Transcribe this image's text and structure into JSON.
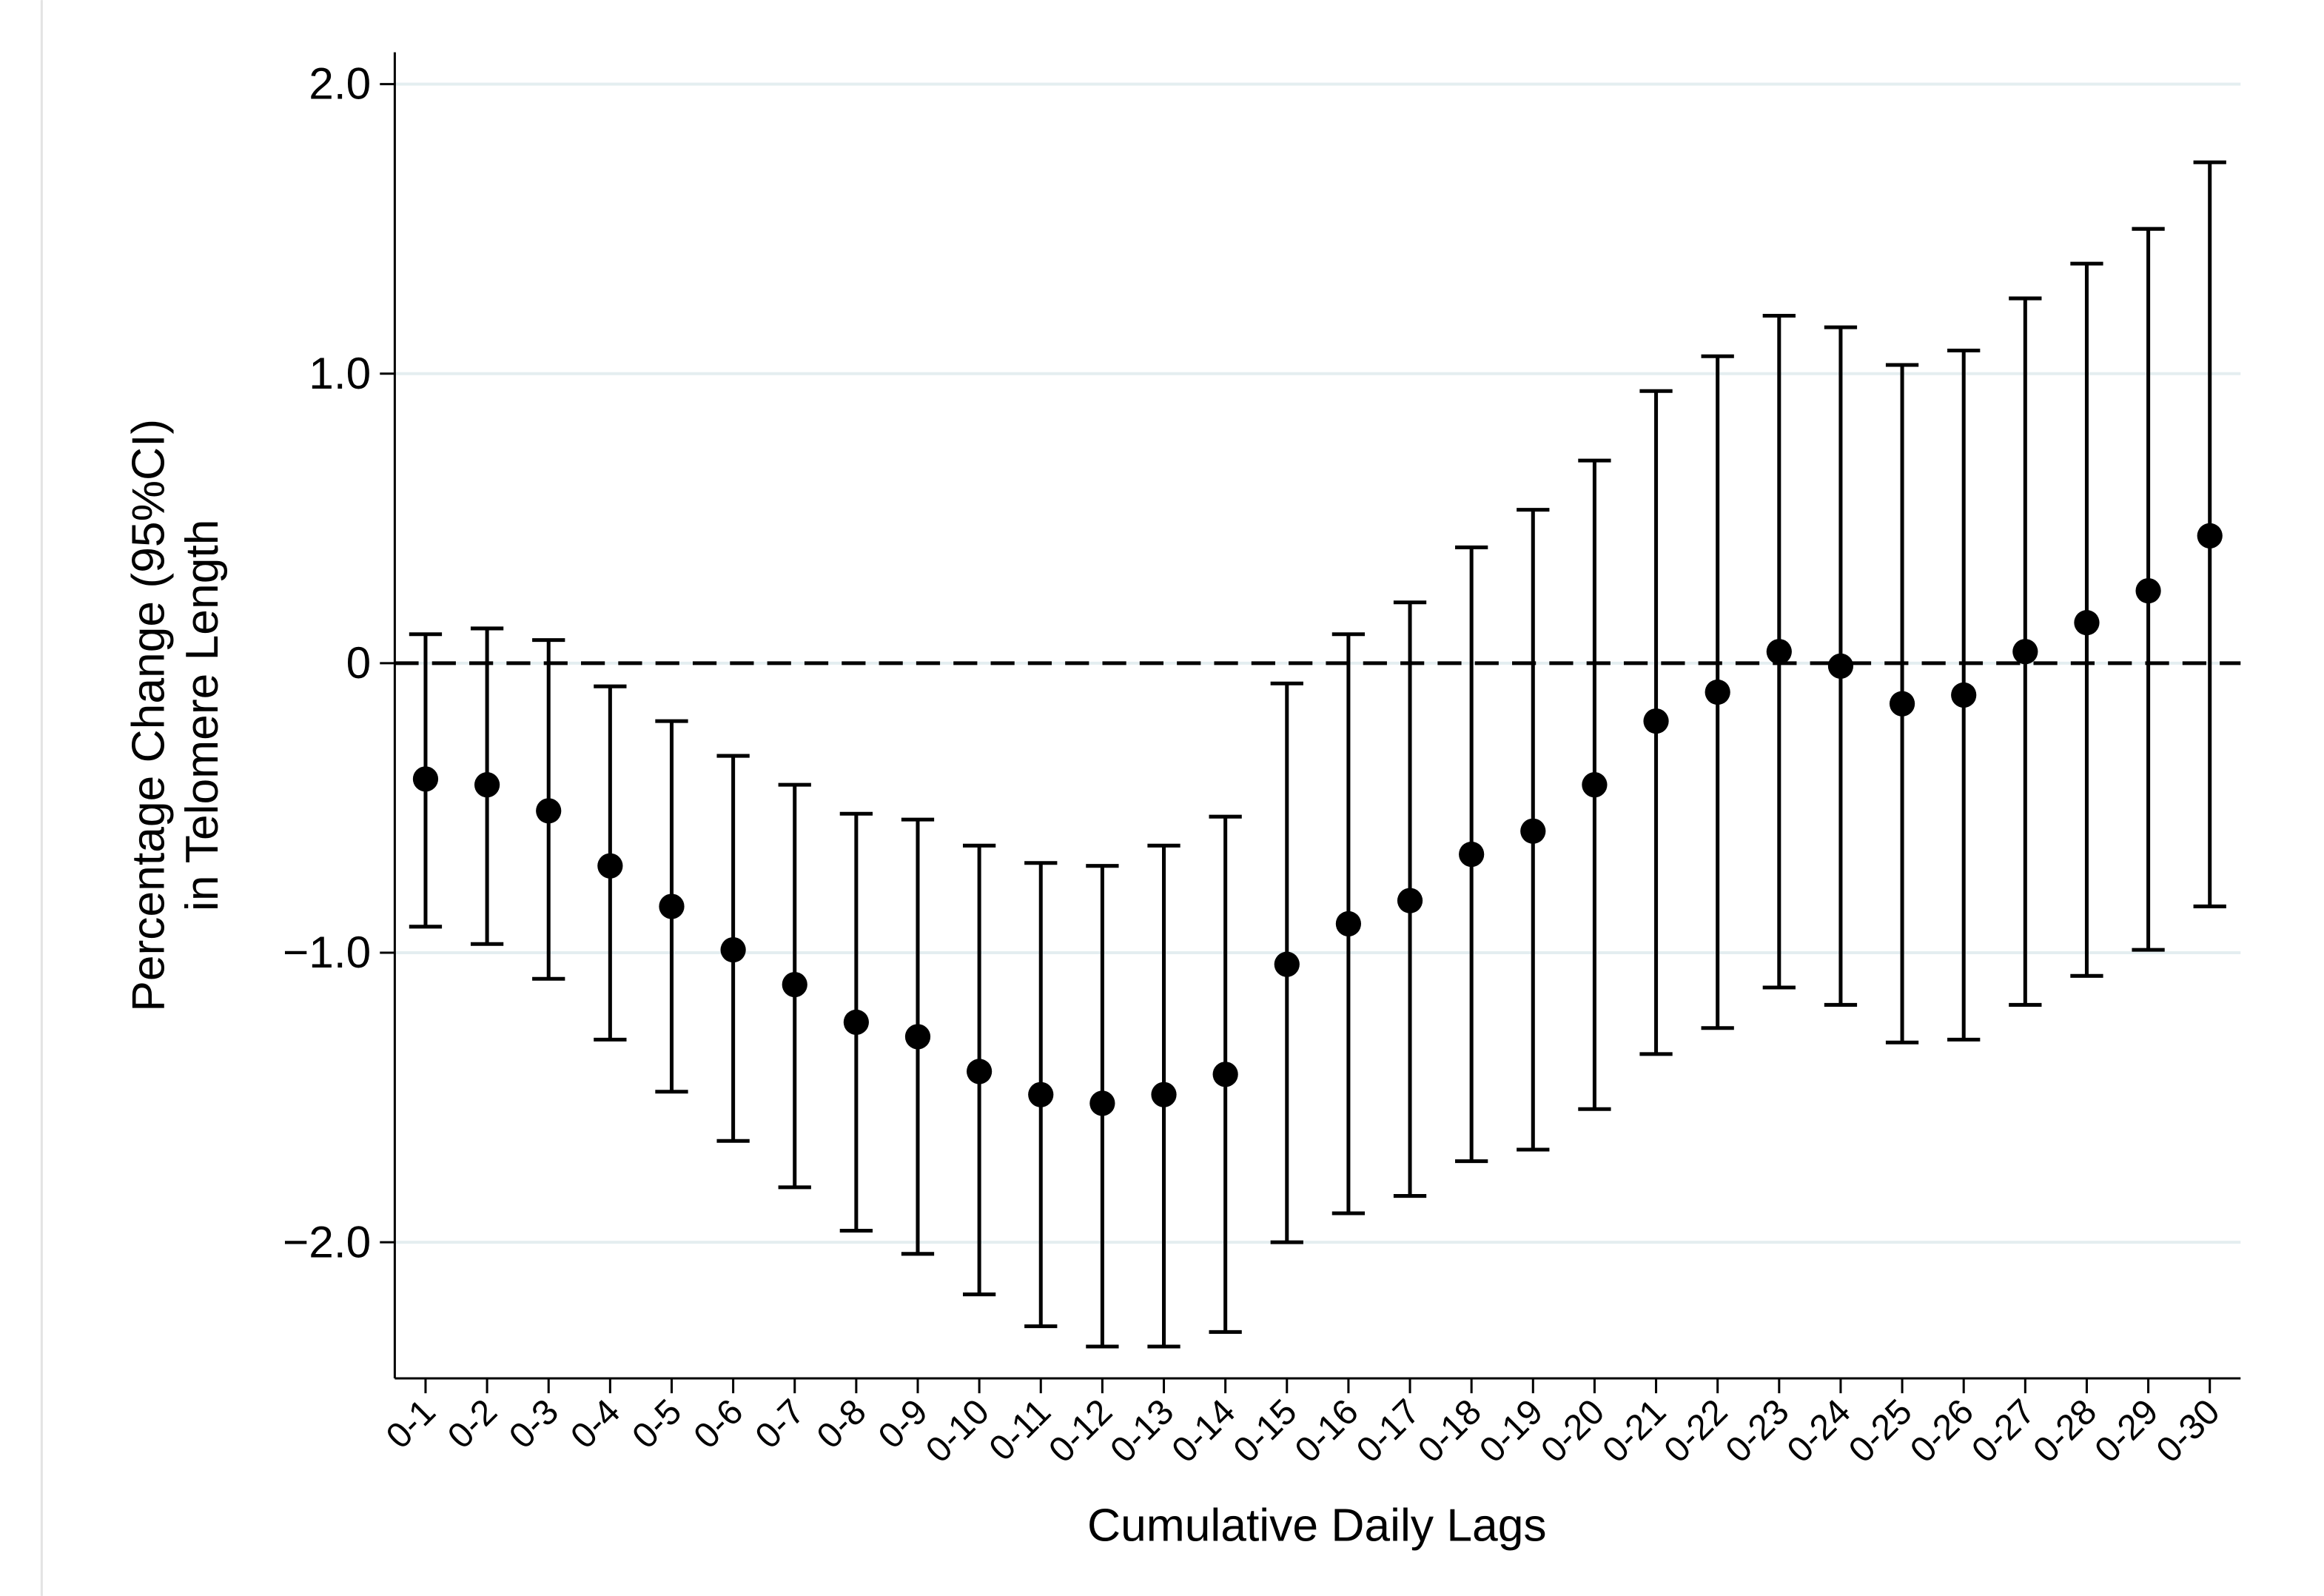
{
  "chart_data": {
    "type": "errorbar",
    "xlabel": "Cumulative Daily Lags",
    "ylabel": [
      "Percentage Change (95%CI)",
      "in Telomere Length"
    ],
    "categories": [
      "0-1",
      "0-2",
      "0-3",
      "0-4",
      "0-5",
      "0-6",
      "0-7",
      "0-8",
      "0-9",
      "0-10",
      "0-11",
      "0-12",
      "0-13",
      "0-14",
      "0-15",
      "0-16",
      "0-17",
      "0-18",
      "0-19",
      "0-20",
      "0-21",
      "0-22",
      "0-23",
      "0-24",
      "0-25",
      "0-26",
      "0-27",
      "0-28",
      "0-29",
      "0-30"
    ],
    "values": [
      -0.4,
      -0.42,
      -0.51,
      -0.7,
      -0.84,
      -0.99,
      -1.11,
      -1.24,
      -1.29,
      -1.41,
      -1.49,
      -1.52,
      -1.49,
      -1.42,
      -1.04,
      -0.9,
      -0.82,
      -0.66,
      -0.58,
      -0.42,
      -0.2,
      -0.1,
      0.04,
      -0.01,
      -0.14,
      -0.11,
      0.04,
      0.14,
      0.25,
      0.44
    ],
    "lower": [
      -0.91,
      -0.97,
      -1.09,
      -1.3,
      -1.48,
      -1.65,
      -1.81,
      -1.96,
      -2.04,
      -2.18,
      -2.29,
      -2.36,
      -2.36,
      -2.31,
      -2.0,
      -1.9,
      -1.84,
      -1.72,
      -1.68,
      -1.54,
      -1.35,
      -1.26,
      -1.12,
      -1.18,
      -1.31,
      -1.3,
      -1.18,
      -1.08,
      -0.99,
      -0.84
    ],
    "upper": [
      0.1,
      0.12,
      0.08,
      -0.08,
      -0.2,
      -0.32,
      -0.42,
      -0.52,
      -0.54,
      -0.63,
      -0.69,
      -0.7,
      -0.63,
      -0.53,
      -0.07,
      0.1,
      0.21,
      0.4,
      0.53,
      0.7,
      0.94,
      1.06,
      1.2,
      1.16,
      1.03,
      1.08,
      1.26,
      1.38,
      1.5,
      1.73
    ],
    "color": "#000000",
    "ylim": [
      -2.47,
      2.11
    ],
    "yticks": [
      {
        "value": 2,
        "label": "2.0"
      },
      {
        "value": 1,
        "label": "1.0"
      },
      0,
      {
        "value": -1,
        "label": "−1.0"
      },
      {
        "value": -2,
        "label": "−2.0"
      }
    ],
    "reference_line": 0,
    "grid": true
  }
}
